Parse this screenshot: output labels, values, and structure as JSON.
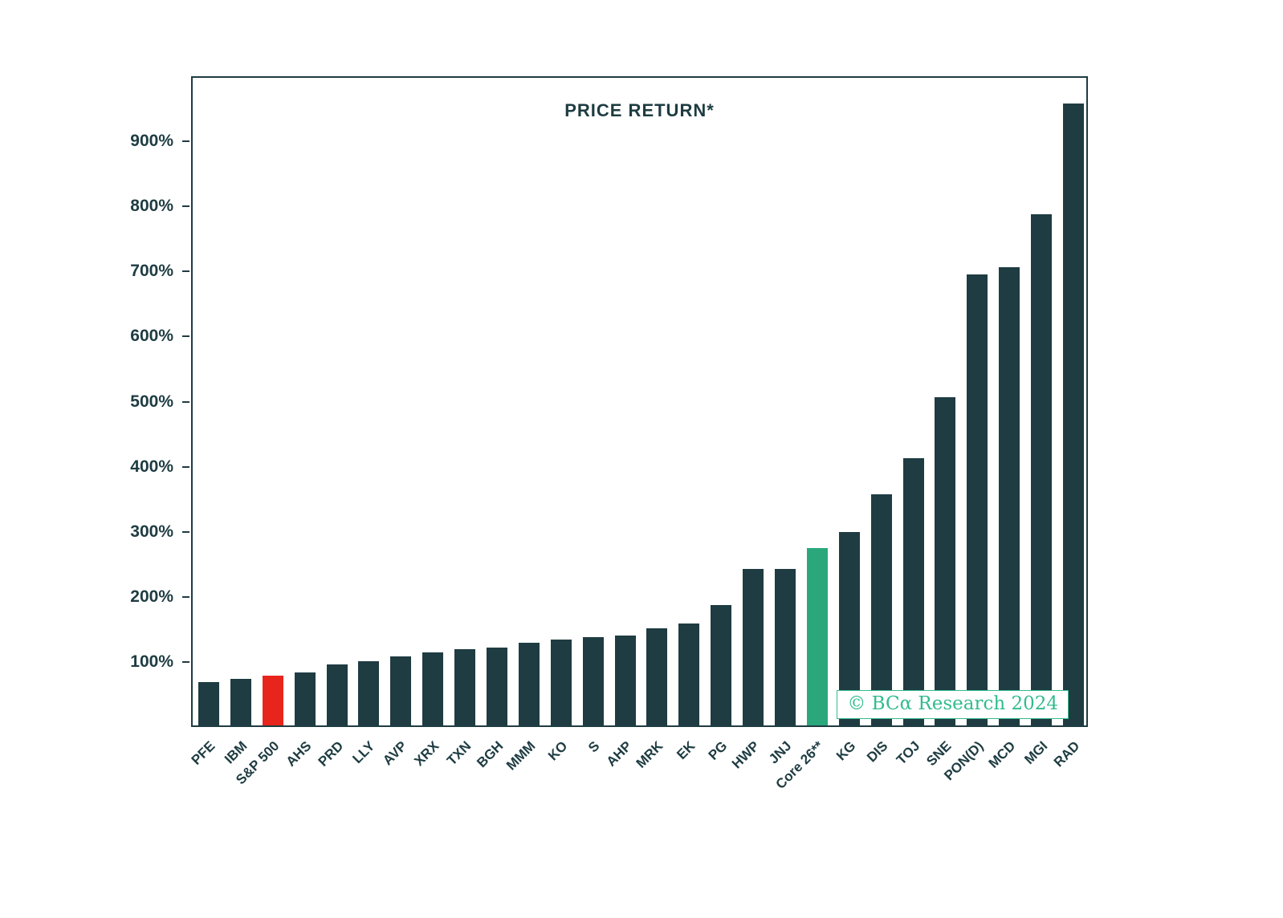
{
  "chart_data": {
    "type": "bar",
    "title": "PRICE RETURN*",
    "xlabel": "",
    "ylabel": "",
    "ylim": [
      0,
      1000
    ],
    "yticks": [
      100,
      200,
      300,
      400,
      500,
      600,
      700,
      800,
      900
    ],
    "ytick_suffix": "%",
    "grid": false,
    "legend_position": "none",
    "categories": [
      "PFE",
      "IBM",
      "S&P 500",
      "AHS",
      "PRD",
      "LLY",
      "AVP",
      "XRX",
      "TXN",
      "BGH",
      "MMM",
      "KO",
      "S",
      "AHP",
      "MRK",
      "EK",
      "PG",
      "HWP",
      "JNJ",
      "Core 26**",
      "KG",
      "DIS",
      "TOJ",
      "SNE",
      "PON(D)",
      "MCD",
      "MGI",
      "RAD"
    ],
    "values": [
      67,
      72,
      76,
      82,
      94,
      99,
      106,
      112,
      117,
      120,
      127,
      132,
      136,
      138,
      149,
      157,
      185,
      240,
      241,
      272,
      297,
      355,
      411,
      504,
      693,
      704,
      785,
      956
    ],
    "bar_colors": {
      "default": "#1e3c42",
      "S&P 500": "#e8251d",
      "Core 26**": "#2aa87c"
    }
  },
  "watermark": {
    "text": "© BCα Research 2024",
    "color": "#32bc8c"
  }
}
